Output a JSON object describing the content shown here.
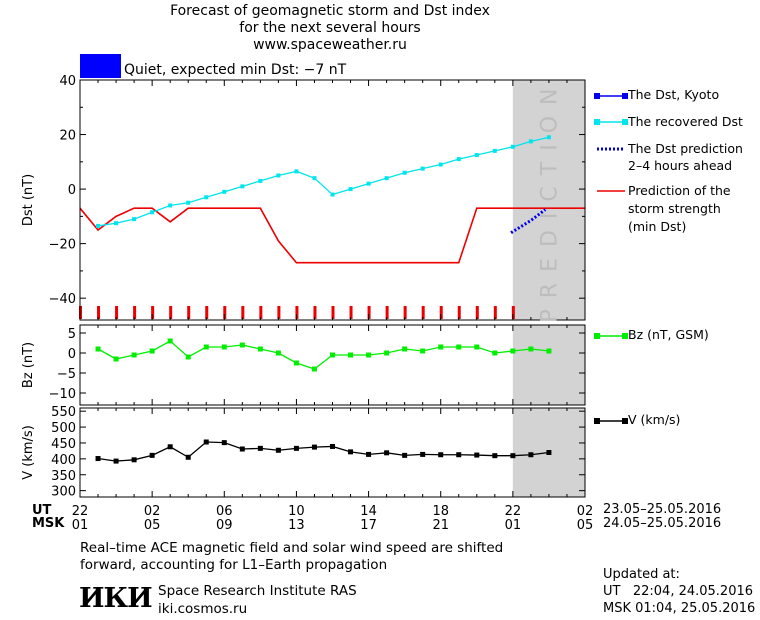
{
  "header": {
    "title_lines": [
      "Forecast of geomagnetic storm and Dst index",
      "for the next several hours",
      "www.spaceweather.ru"
    ],
    "status": "Quiet, expected min Dst: −7 nT",
    "status_color": "#0000ff"
  },
  "legend": {
    "dst_kyoto": "The Dst, Kyoto",
    "recovered": "The recovered Dst",
    "prediction_lines": [
      "The Dst prediction",
      "2–4 hours ahead"
    ],
    "storm_lines": [
      "Prediction of the",
      "storm strength",
      "(min Dst)"
    ],
    "bz": "Bz (nT, GSM)",
    "v": "V (km/s)",
    "prediction_band": "PREDICTION"
  },
  "time_axis": {
    "ut_label": "UT",
    "msk_label": "MSK",
    "ut_ticks": [
      "22",
      "02",
      "06",
      "10",
      "14",
      "18",
      "22",
      "02"
    ],
    "msk_ticks": [
      "01",
      "05",
      "09",
      "13",
      "17",
      "21",
      "01",
      "05"
    ],
    "ut_range": "23.05–25.05.2016",
    "msk_range": "24.05–25.05.2016"
  },
  "footer": {
    "note_lines": [
      "Real–time ACE magnetic field and solar wind speed are shifted",
      "forward, accounting for L1–Earth propagation"
    ],
    "logo": "ИКИ",
    "institute": "Space Research Institute RAS",
    "website": "iki.cosmos.ru",
    "updated_label": "Updated at:",
    "updated_ut": "UT   22:04, 24.05.2016",
    "updated_msk": "MSK 01:04, 25.05.2016"
  },
  "colors": {
    "recovered": "#00e5ee",
    "storm": "#ee0000",
    "prediction": "#0000ee",
    "bz": "#00ee00",
    "v": "#000000",
    "band": "#d3d3d3"
  },
  "chart_data": [
    {
      "type": "line",
      "ylabel": "Dst (nT)",
      "ylim": [
        -48,
        40
      ],
      "yticks": [
        40,
        20,
        0,
        -20,
        -40
      ],
      "xlim": [
        -1,
        27
      ],
      "prediction_from": 23,
      "series": [
        {
          "name": "The recovered Dst",
          "x": [
            0,
            1,
            2,
            3,
            4,
            5,
            6,
            7,
            8,
            9,
            10,
            11,
            12,
            13,
            14,
            15,
            16,
            17,
            18,
            19,
            20,
            21,
            22,
            23,
            24,
            25
          ],
          "values": [
            -13.5,
            -12.5,
            -11,
            -8.5,
            -6,
            -5,
            -3,
            -1,
            1,
            3,
            5,
            6.5,
            4,
            -2,
            0,
            2,
            4,
            6,
            7.5,
            9,
            11,
            12.5,
            14,
            15.5,
            17.5,
            19
          ]
        },
        {
          "name": "Prediction of the storm strength (min Dst)",
          "x": [
            -1,
            0,
            1,
            2,
            3,
            4,
            5,
            6,
            7,
            8,
            9,
            10,
            11,
            12,
            13,
            14,
            15,
            16,
            17,
            18,
            19,
            20,
            21,
            22,
            23,
            27
          ],
          "values": [
            -7,
            -15,
            -10,
            -7,
            -7,
            -12,
            -7,
            -7,
            -7,
            -7,
            -7,
            -19,
            -27,
            -27,
            -27,
            -27,
            -27,
            -27,
            -27,
            -27,
            -27,
            -27,
            -7,
            -7,
            -7,
            -7
          ]
        },
        {
          "name": "The Dst prediction 2–4 hours ahead",
          "x": [
            22.9,
            24,
            24.8
          ],
          "values": [
            -16,
            -11.5,
            -7.5
          ]
        }
      ]
    },
    {
      "type": "line",
      "ylabel": "Bz (nT)",
      "ylim": [
        -13,
        7
      ],
      "yticks": [
        5,
        0,
        -5,
        -10
      ],
      "series": [
        {
          "name": "Bz (nT, GSM)",
          "x": [
            0,
            1,
            2,
            3,
            4,
            5,
            6,
            7,
            8,
            9,
            10,
            11,
            12,
            13,
            14,
            15,
            16,
            17,
            18,
            19,
            20,
            21,
            22,
            23,
            24,
            25
          ],
          "values": [
            1,
            -1.5,
            -0.5,
            0.5,
            3,
            -1,
            1.5,
            1.5,
            2,
            1,
            0,
            -2.5,
            -4,
            -0.5,
            -0.5,
            -0.5,
            0,
            1,
            0.5,
            1.5,
            1.5,
            1.5,
            0,
            0.5,
            1,
            0.5
          ]
        }
      ]
    },
    {
      "type": "line",
      "ylabel": "V (km/s)",
      "ylim": [
        280,
        560
      ],
      "yticks": [
        550,
        500,
        450,
        400,
        350,
        300
      ],
      "series": [
        {
          "name": "V (km/s)",
          "x": [
            0,
            1,
            2,
            3,
            4,
            5,
            6,
            7,
            8,
            9,
            10,
            11,
            12,
            13,
            14,
            15,
            16,
            17,
            18,
            19,
            20,
            21,
            22,
            23,
            24,
            25
          ],
          "values": [
            401,
            393,
            397,
            411,
            438,
            405,
            453,
            451,
            431,
            433,
            427,
            433,
            437,
            439,
            422,
            414,
            419,
            411,
            414,
            413,
            413,
            412,
            410,
            410,
            413,
            420
          ]
        }
      ]
    }
  ]
}
